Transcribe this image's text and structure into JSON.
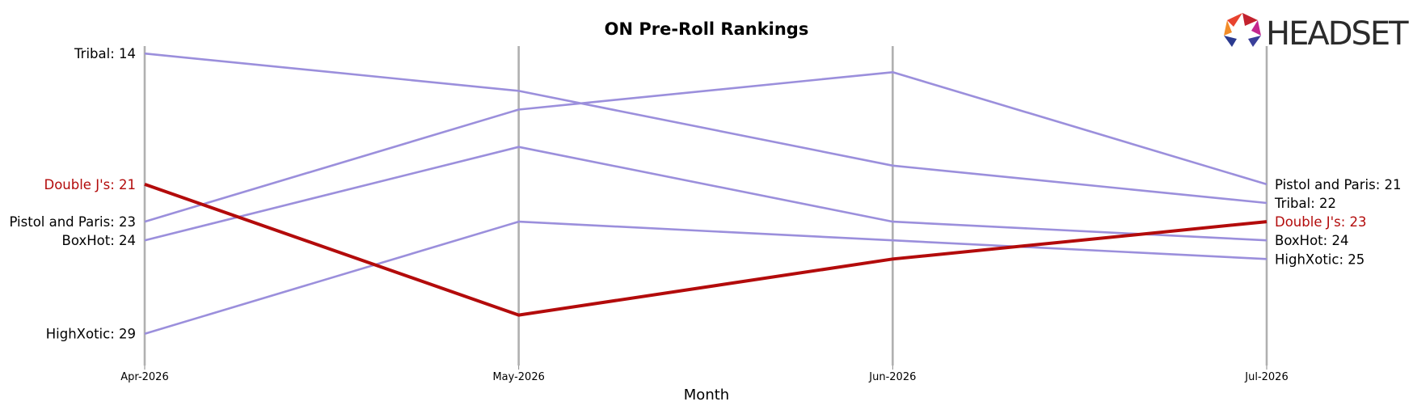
{
  "chart_data": {
    "type": "line",
    "title": "ON Pre-Roll Rankings",
    "xlabel": "Month",
    "ylabel": "",
    "categories": [
      "Apr-2026",
      "May-2026",
      "Jun-2026",
      "Jul-2026"
    ],
    "y_inverted": true,
    "ylim": [
      13.3,
      30.7
    ],
    "grid": "vertical lines at each month",
    "legend": "labels at line ends",
    "highlight_color": "#b30b0b",
    "base_color": "#9b8fdc",
    "series": [
      {
        "name": "Tribal",
        "values": [
          14,
          16,
          20,
          22
        ],
        "highlight": false,
        "start_label": "Tribal: 14",
        "end_label": "Tribal: 22"
      },
      {
        "name": "Pistol and Paris",
        "values": [
          23,
          17,
          15,
          21
        ],
        "highlight": false,
        "start_label": "Pistol and Paris: 23",
        "end_label": "Pistol and Paris: 21"
      },
      {
        "name": "BoxHot",
        "values": [
          24,
          19,
          23,
          24
        ],
        "highlight": false,
        "start_label": "BoxHot: 24",
        "end_label": "BoxHot: 24"
      },
      {
        "name": "HighXotic",
        "values": [
          29,
          23,
          24,
          25
        ],
        "highlight": false,
        "start_label": "HighXotic: 29",
        "end_label": "HighXotic: 25"
      },
      {
        "name": "Double J's",
        "values": [
          21,
          28,
          25,
          23
        ],
        "highlight": true,
        "start_label": "Double J's: 21",
        "end_label": "Double J's: 23"
      }
    ]
  },
  "logo": {
    "text": "HEADSET"
  }
}
